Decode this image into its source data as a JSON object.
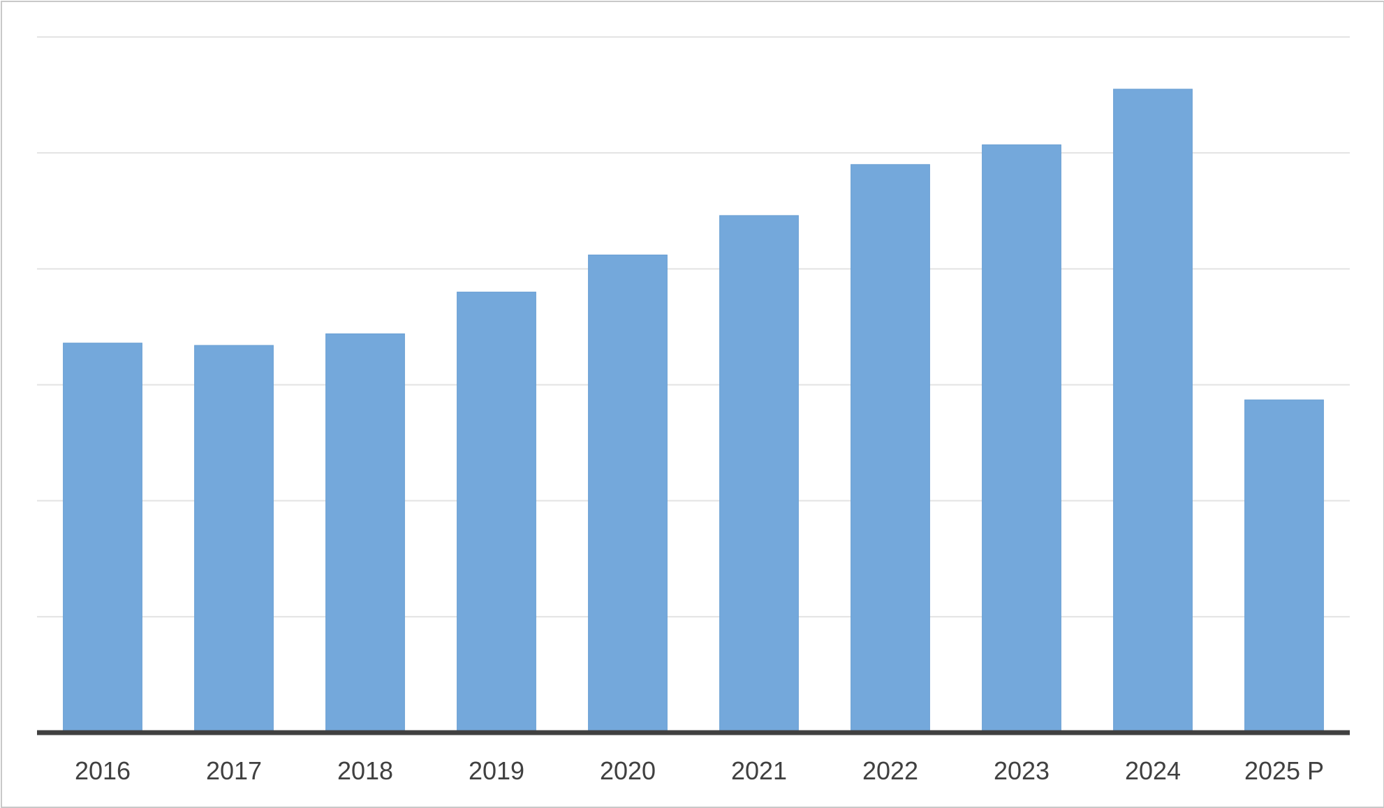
{
  "chart_data": {
    "type": "bar",
    "title": "",
    "xlabel": "",
    "ylabel": "",
    "categories": [
      "2016",
      "2017",
      "2018",
      "2019",
      "2020",
      "2021",
      "2022",
      "2023",
      "2024",
      "2025 P"
    ],
    "values": [
      3.36,
      3.34,
      3.44,
      3.8,
      4.12,
      4.46,
      4.9,
      5.07,
      5.55,
      2.87
    ],
    "ylim": [
      0,
      6
    ],
    "y_gridlines": [
      0,
      1,
      2,
      3,
      4,
      5,
      6
    ],
    "show_y_tick_labels": false,
    "grid": true,
    "legend": "none",
    "colors": {
      "bar": "#74a8db",
      "grid": "#e3e3e3",
      "axis": "#404040",
      "tick_text": "#404040",
      "border": "#c8c8c8"
    }
  }
}
